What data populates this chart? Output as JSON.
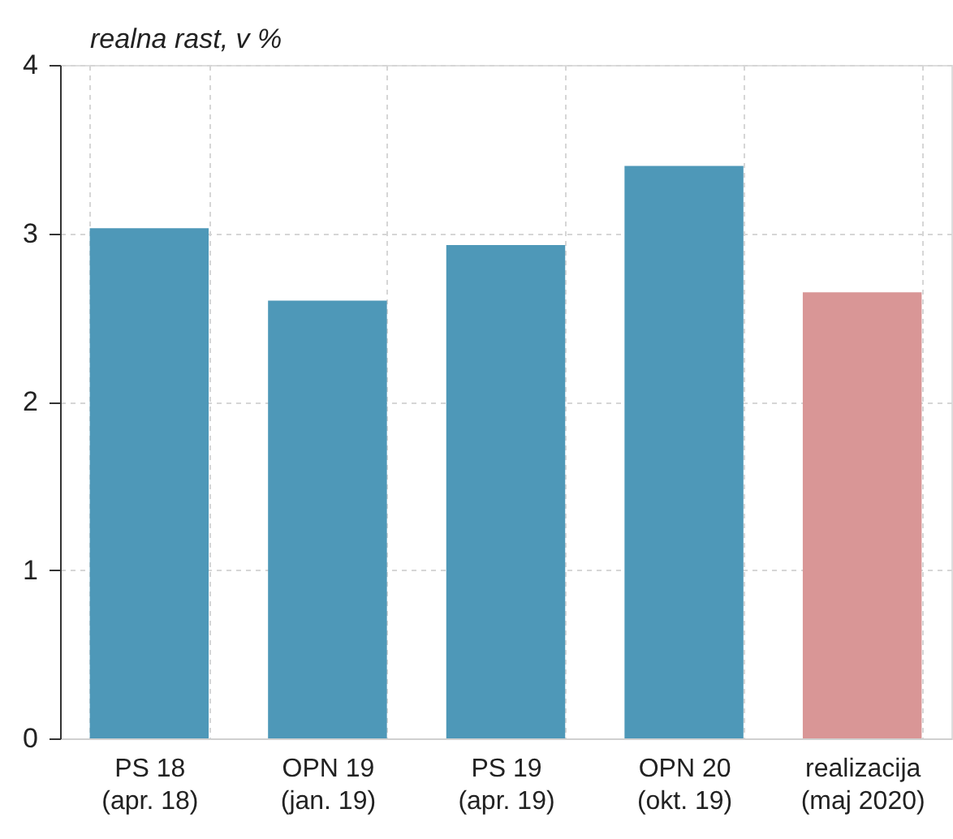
{
  "chart_data": {
    "type": "bar",
    "ylabel": "realna rast, v %",
    "categories": [
      "PS 18\n(apr. 18)",
      "OPN 19\n(jan. 19)",
      "PS 19\n(apr. 19)",
      "OPN 20\n(okt. 19)",
      "realizacija\n(maj 2020)"
    ],
    "values": [
      3.03,
      2.6,
      2.93,
      3.4,
      2.65
    ],
    "colors": [
      "#4e98b8",
      "#4e98b8",
      "#4e98b8",
      "#4e98b8",
      "#d99696"
    ],
    "ylim": [
      0,
      4
    ],
    "yticks": [
      0,
      1,
      2,
      3,
      4
    ],
    "grid": true
  }
}
